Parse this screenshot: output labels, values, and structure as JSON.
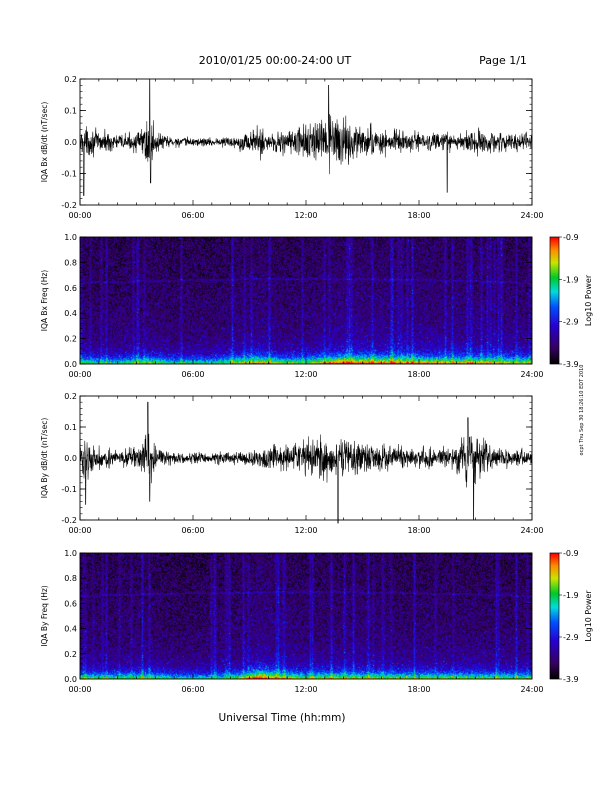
{
  "header": {
    "title": "2010/01/25  00:00-24:00 UT",
    "page": "Page 1/1"
  },
  "side_note": "ocpt Thu Sep 30 18:26:10 EDT 2010",
  "chart_data": [
    {
      "type": "line",
      "ylabel": "IQA Bx dB/dt (nT/sec)",
      "ylim": [
        -0.2,
        0.2
      ],
      "y_ticks": [
        -0.2,
        -0.1,
        0.0,
        0.1,
        0.2
      ],
      "y_tick_labels": [
        "-0.2",
        "-0.1",
        "0.0",
        "0.1",
        "0.2"
      ],
      "xlim": [
        0,
        24
      ],
      "x_ticks": [
        0,
        6,
        12,
        18,
        24
      ],
      "x_tick_labels": [
        "00:00",
        "06:00",
        "12:00",
        "18:00",
        "24:00"
      ],
      "envelope": {
        "hours": [
          0,
          1,
          2,
          3,
          3.5,
          3.7,
          3.9,
          4.2,
          5,
          6,
          7,
          8,
          9,
          9.5,
          10,
          11,
          12,
          12.8,
          13.3,
          14,
          15,
          16,
          17,
          18,
          19,
          20,
          21,
          22,
          23,
          24
        ],
        "amplitude": [
          0.07,
          0.05,
          0.035,
          0.04,
          0.09,
          0.19,
          0.08,
          0.04,
          0.025,
          0.02,
          0.02,
          0.025,
          0.05,
          0.07,
          0.05,
          0.06,
          0.08,
          0.09,
          0.12,
          0.1,
          0.07,
          0.06,
          0.05,
          0.045,
          0.04,
          0.04,
          0.06,
          0.04,
          0.035,
          0.04
        ]
      },
      "spikes": [
        {
          "hour": 3.7,
          "value": 0.2
        },
        {
          "hour": 3.75,
          "value": -0.13
        },
        {
          "hour": 0.2,
          "value": -0.17
        },
        {
          "hour": 19.5,
          "value": -0.16
        },
        {
          "hour": 13.2,
          "value": 0.18
        }
      ]
    },
    {
      "type": "heatmap",
      "ylabel": "IQA Bx Freq (Hz)",
      "ylim": [
        0.0,
        1.0
      ],
      "y_ticks": [
        0.0,
        0.2,
        0.4,
        0.6,
        0.8,
        1.0
      ],
      "y_tick_labels": [
        "0.0",
        "0.2",
        "0.4",
        "0.6",
        "0.8",
        "1.0"
      ],
      "xlim": [
        0,
        24
      ],
      "x_ticks": [
        0,
        6,
        12,
        18,
        24
      ],
      "x_tick_labels": [
        "00:00",
        "06:00",
        "12:00",
        "18:00",
        "24:00"
      ],
      "colorbar": {
        "label": "Log10 Power",
        "range": [
          -3.9,
          -0.9
        ],
        "ticks": [
          -0.9,
          -1.9,
          -2.9,
          -3.9
        ],
        "tick_labels": [
          "-0.9",
          "-1.9",
          "-2.9",
          "-3.9"
        ]
      },
      "resonance_line_hz": 0.64,
      "activity": {
        "hours": [
          0,
          2,
          3.5,
          5,
          7,
          9,
          9.5,
          10.5,
          12,
          13,
          14,
          16,
          18,
          20,
          22,
          24
        ],
        "level": [
          0.35,
          0.3,
          0.45,
          0.3,
          0.3,
          0.55,
          0.6,
          0.45,
          0.4,
          0.6,
          0.7,
          0.65,
          0.6,
          0.55,
          0.5,
          0.45
        ]
      }
    },
    {
      "type": "line",
      "ylabel": "IQA By dB/dt (nT/sec)",
      "ylim": [
        -0.2,
        0.2
      ],
      "y_ticks": [
        -0.2,
        -0.1,
        0.0,
        0.1,
        0.2
      ],
      "y_tick_labels": [
        "-0.2",
        "-0.1",
        "0.0",
        "0.1",
        "0.2"
      ],
      "xlim": [
        0,
        24
      ],
      "x_ticks": [
        0,
        6,
        12,
        18,
        24
      ],
      "x_tick_labels": [
        "00:00",
        "06:00",
        "12:00",
        "18:00",
        "24:00"
      ],
      "envelope": {
        "hours": [
          0,
          0.5,
          1,
          2,
          3,
          3.5,
          3.7,
          4,
          5,
          6,
          7,
          8,
          9,
          10,
          11,
          12,
          12.5,
          13,
          13.5,
          14,
          15,
          16,
          17,
          18,
          19,
          20,
          20.5,
          21,
          22,
          23,
          24
        ],
        "amplitude": [
          0.07,
          0.09,
          0.05,
          0.035,
          0.05,
          0.1,
          0.17,
          0.05,
          0.03,
          0.025,
          0.025,
          0.03,
          0.04,
          0.05,
          0.06,
          0.08,
          0.1,
          0.12,
          0.09,
          0.09,
          0.07,
          0.06,
          0.05,
          0.05,
          0.05,
          0.06,
          0.12,
          0.1,
          0.05,
          0.04,
          0.04
        ]
      },
      "spikes": [
        {
          "hour": 3.6,
          "value": 0.18
        },
        {
          "hour": 3.7,
          "value": -0.14
        },
        {
          "hour": 0.3,
          "value": -0.15
        },
        {
          "hour": 13.7,
          "value": -0.21
        },
        {
          "hour": 20.9,
          "value": -0.2
        },
        {
          "hour": 20.6,
          "value": 0.13
        }
      ]
    },
    {
      "type": "heatmap",
      "ylabel": "IQA By Freq (Hz)",
      "ylim": [
        0.0,
        1.0
      ],
      "y_ticks": [
        0.0,
        0.2,
        0.4,
        0.6,
        0.8,
        1.0
      ],
      "y_tick_labels": [
        "0.0",
        "0.2",
        "0.4",
        "0.6",
        "0.8",
        "1.0"
      ],
      "xlim": [
        0,
        24
      ],
      "x_ticks": [
        0,
        6,
        12,
        18,
        24
      ],
      "x_tick_labels": [
        "00:00",
        "06:00",
        "12:00",
        "18:00",
        "24:00"
      ],
      "xlabel": "Universal Time (hh:mm)",
      "colorbar": {
        "label": "Log10 Power",
        "range": [
          -3.9,
          -0.9
        ],
        "ticks": [
          -0.9,
          -1.9,
          -2.9,
          -3.9
        ],
        "tick_labels": [
          "-0.9",
          "-1.9",
          "-2.9",
          "-3.9"
        ]
      },
      "resonance_line_hz": 0.66,
      "activity": {
        "hours": [
          0,
          2,
          3.5,
          5,
          7,
          8.5,
          9.5,
          10.5,
          12,
          13,
          14,
          16,
          18,
          20,
          22,
          24
        ],
        "level": [
          0.35,
          0.3,
          0.4,
          0.25,
          0.25,
          0.4,
          0.75,
          0.55,
          0.4,
          0.45,
          0.45,
          0.4,
          0.4,
          0.4,
          0.35,
          0.35
        ]
      }
    }
  ]
}
